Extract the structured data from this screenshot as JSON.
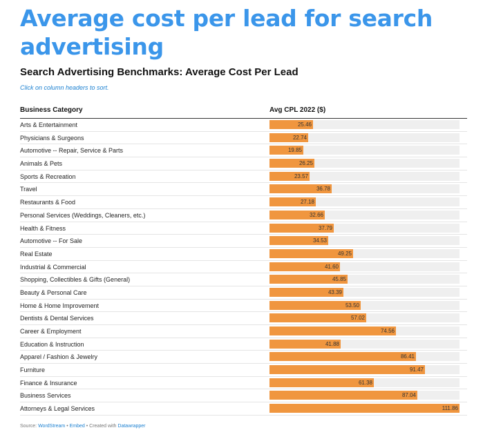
{
  "headline": "Average cost per lead for search advertising",
  "chart_title": "Search Advertising Benchmarks: Average Cost Per Lead",
  "sort_hint": "Click on column headers to sort.",
  "columns": {
    "category": "Business Category",
    "value": "Avg CPL 2022 ($)"
  },
  "footer": {
    "source_label": "Source:",
    "source_link": "WordStream",
    "separator1": "•",
    "embed_link": "Embed",
    "separator2": "•",
    "created_with": "Created with",
    "tool_link": "Datawrapper"
  },
  "colors": {
    "headline": "#3b96ea",
    "bar": "#f0963f",
    "track": "#efefef",
    "link": "#1d81d1"
  },
  "chart_data": {
    "type": "table",
    "title": "Search Advertising Benchmarks: Average Cost Per Lead",
    "bar_max": 111.86,
    "categories": [
      "Arts & Entertainment",
      "Physicians & Surgeons",
      "Automotive -- Repair, Service & Parts",
      "Animals & Pets",
      "Sports & Recreation",
      "Travel",
      "Restaurants & Food",
      "Personal Services (Weddings, Cleaners, etc.)",
      "Health & Fitness",
      "Automotive -- For Sale",
      "Real Estate",
      "Industrial & Commercial",
      "Shopping, Collectibles & Gifts (General)",
      "Beauty & Personal Care",
      "Home & Home Improvement",
      "Dentists & Dental Services",
      "Career & Employment",
      "Education & Instruction",
      "Apparel / Fashion & Jewelry",
      "Furniture",
      "Finance & Insurance",
      "Business Services",
      "Attorneys & Legal Services"
    ],
    "values": [
      25.46,
      22.74,
      19.85,
      26.25,
      23.57,
      36.78,
      27.18,
      32.66,
      37.79,
      34.53,
      49.25,
      41.6,
      45.85,
      43.39,
      53.5,
      57.02,
      74.56,
      41.88,
      86.41,
      91.47,
      61.38,
      87.04,
      111.86
    ],
    "value_labels": [
      "25.46",
      "22.74",
      "19.85",
      "26.25",
      "23.57",
      "36.78",
      "27.18",
      "32.66",
      "37.79",
      "34.53",
      "49.25",
      "41.60",
      "45.85",
      "43.39",
      "53.50",
      "57.02",
      "74.56",
      "41.88",
      "86.41",
      "91.47",
      "61.38",
      "87.04",
      "111.86"
    ]
  }
}
